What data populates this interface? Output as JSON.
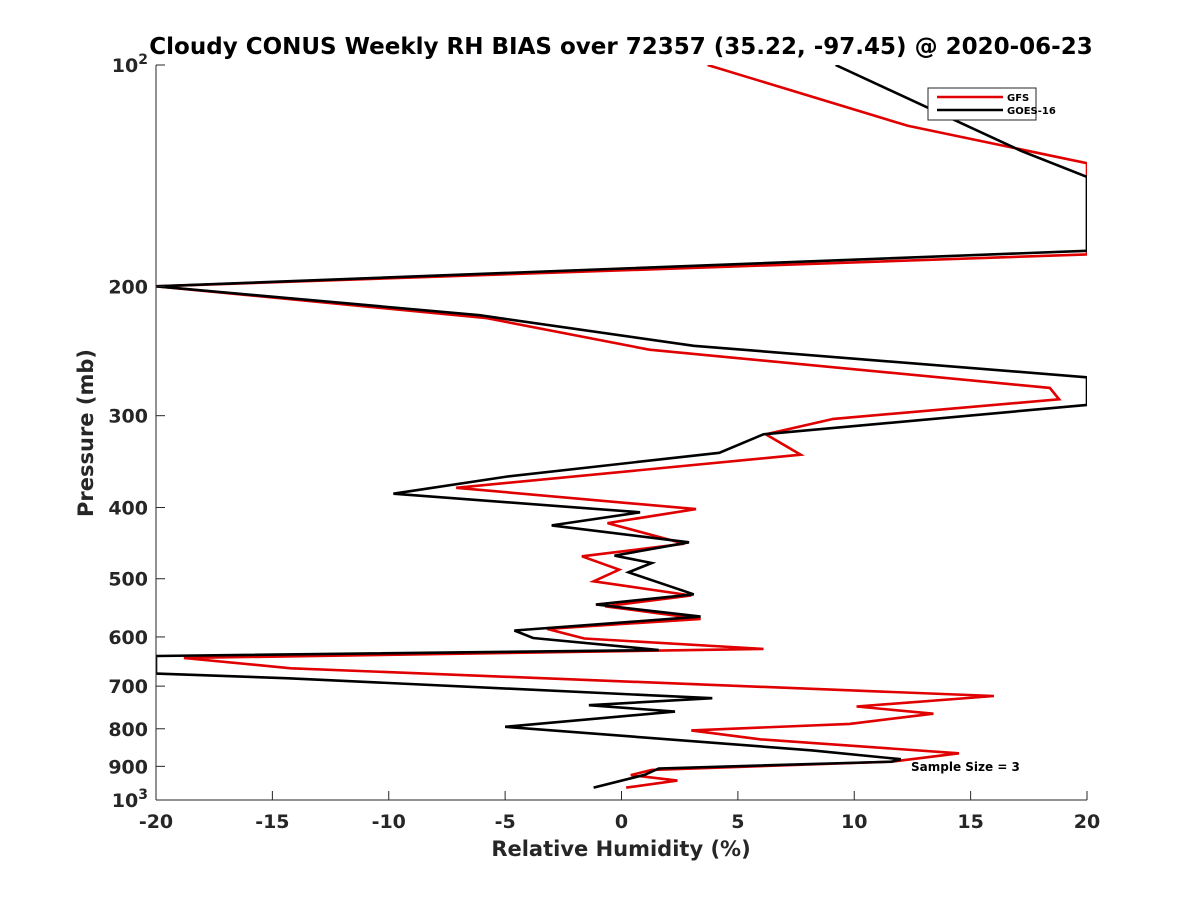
{
  "chart_data": {
    "type": "line",
    "title": "Cloudy CONUS Weekly RH BIAS over 72357 (35.22, -97.45) @ 2020-06-23",
    "xlabel": "Relative Humidity (%)",
    "ylabel": "Pressure (mb)",
    "xlim": [
      -20,
      20
    ],
    "ylim": [
      100,
      1000
    ],
    "y_scale": "log",
    "y_reversed": true,
    "x_ticks": [
      "-20",
      "-15",
      "-10",
      "-5",
      "0",
      "5",
      "10",
      "15",
      "20"
    ],
    "y_ticks": [
      {
        "value": 100,
        "base": "10",
        "exp": "2"
      },
      {
        "value": 200,
        "label": "200"
      },
      {
        "value": 300,
        "label": "300"
      },
      {
        "value": 400,
        "label": "400"
      },
      {
        "value": 500,
        "label": "500"
      },
      {
        "value": 600,
        "label": "600"
      },
      {
        "value": 700,
        "label": "700"
      },
      {
        "value": 800,
        "label": "800"
      },
      {
        "value": 900,
        "label": "900"
      },
      {
        "value": 1000,
        "base": "10",
        "exp": "3"
      }
    ],
    "grid": false,
    "legend_position": "top-right",
    "annotation": "Sample Size = 3",
    "series": [
      {
        "name": "GFS",
        "color": "#e00000",
        "points": [
          [
            3.7,
            100
          ],
          [
            12.3,
            121
          ],
          [
            20,
            136
          ],
          [
            20,
            181
          ],
          [
            -20,
            200
          ],
          [
            -5.8,
            221
          ],
          [
            1.2,
            244
          ],
          [
            18.4,
            275
          ],
          [
            18.8,
            285
          ],
          [
            9.1,
            303
          ],
          [
            6.2,
            318
          ],
          [
            7.7,
            339
          ],
          [
            -7.1,
            376
          ],
          [
            3.2,
            402
          ],
          [
            -0.6,
            420
          ],
          [
            2.7,
            448
          ],
          [
            -1.7,
            466
          ],
          [
            -0.1,
            486
          ],
          [
            -1.2,
            504
          ],
          [
            3.0,
            527
          ],
          [
            -0.7,
            545
          ],
          [
            3.4,
            567
          ],
          [
            -3.2,
            585
          ],
          [
            -1.6,
            603
          ],
          [
            6.1,
            623
          ],
          [
            -18.8,
            641
          ],
          [
            -14.2,
            662
          ],
          [
            16.0,
            722
          ],
          [
            10.1,
            746
          ],
          [
            13.4,
            763
          ],
          [
            9.8,
            788
          ],
          [
            3.0,
            804
          ],
          [
            6.0,
            827
          ],
          [
            14.5,
            864
          ],
          [
            11.6,
            887
          ],
          [
            1.3,
            910
          ],
          [
            0.4,
            925
          ],
          [
            2.4,
            941
          ],
          [
            0.2,
            962
          ]
        ]
      },
      {
        "name": "GOES-16",
        "color": "#000000",
        "points": [
          [
            9.2,
            100
          ],
          [
            17.2,
            131
          ],
          [
            20,
            142
          ],
          [
            20,
            179
          ],
          [
            -20,
            200
          ],
          [
            -6.1,
            219
          ],
          [
            3.1,
            241
          ],
          [
            20,
            266
          ],
          [
            20,
            290
          ],
          [
            6.1,
            318
          ],
          [
            4.2,
            337
          ],
          [
            -4.9,
            363
          ],
          [
            -9.8,
            383
          ],
          [
            0.8,
            406
          ],
          [
            -3.0,
            423
          ],
          [
            2.9,
            446
          ],
          [
            -0.3,
            465
          ],
          [
            1.3,
            476
          ],
          [
            0.3,
            490
          ],
          [
            3.1,
            525
          ],
          [
            -1.1,
            542
          ],
          [
            3.4,
            563
          ],
          [
            -4.6,
            588
          ],
          [
            -3.8,
            602
          ],
          [
            1.6,
            625
          ],
          [
            -20,
            637
          ],
          [
            -20,
            673
          ],
          [
            -14.3,
            683
          ],
          [
            3.9,
            727
          ],
          [
            -1.4,
            743
          ],
          [
            2.3,
            758
          ],
          [
            -5.0,
            795
          ],
          [
            8.2,
            856
          ],
          [
            12.0,
            880
          ],
          [
            11.6,
            887
          ],
          [
            1.6,
            906
          ],
          [
            1.0,
            924
          ],
          [
            -1.2,
            962
          ]
        ]
      }
    ]
  }
}
